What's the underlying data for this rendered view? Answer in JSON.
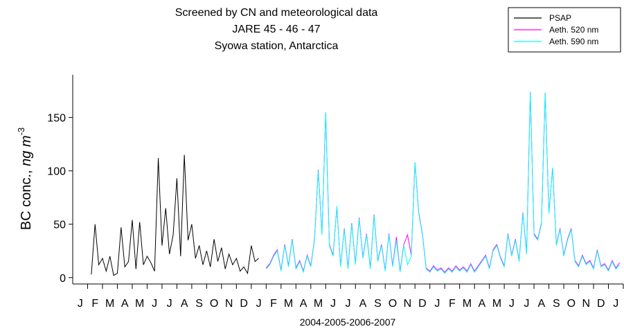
{
  "chart_data": {
    "type": "line",
    "title_lines": [
      "Screened by CN and meteorological data",
      "JARE 45 - 46 - 47",
      "Syowa station, Antarctica"
    ],
    "y_label": {
      "text": "BC conc., ",
      "italic": "ng m",
      "sup": "-3"
    },
    "x_label": "2004-2005-2006-2007",
    "xlim": [
      0,
      37
    ],
    "ylim": [
      -6,
      190
    ],
    "yticks": [
      0,
      50,
      100,
      150
    ],
    "xticks": [
      {
        "value": 0.5,
        "label": "J"
      },
      {
        "value": 1.5,
        "label": "F"
      },
      {
        "value": 2.5,
        "label": "M"
      },
      {
        "value": 3.5,
        "label": "A"
      },
      {
        "value": 4.5,
        "label": "M"
      },
      {
        "value": 5.5,
        "label": "J"
      },
      {
        "value": 6.5,
        "label": "J"
      },
      {
        "value": 7.5,
        "label": "A"
      },
      {
        "value": 8.5,
        "label": "S"
      },
      {
        "value": 9.5,
        "label": "O"
      },
      {
        "value": 10.5,
        "label": "N"
      },
      {
        "value": 11.5,
        "label": "D"
      },
      {
        "value": 12.5,
        "label": "J"
      },
      {
        "value": 13.5,
        "label": "F"
      },
      {
        "value": 14.5,
        "label": "M"
      },
      {
        "value": 15.5,
        "label": "A"
      },
      {
        "value": 16.5,
        "label": "M"
      },
      {
        "value": 17.5,
        "label": "J"
      },
      {
        "value": 18.5,
        "label": "J"
      },
      {
        "value": 19.5,
        "label": "A"
      },
      {
        "value": 20.5,
        "label": "S"
      },
      {
        "value": 21.5,
        "label": "O"
      },
      {
        "value": 22.5,
        "label": "N"
      },
      {
        "value": 23.5,
        "label": "D"
      },
      {
        "value": 24.5,
        "label": "J"
      },
      {
        "value": 25.5,
        "label": "F"
      },
      {
        "value": 26.5,
        "label": "M"
      },
      {
        "value": 27.5,
        "label": "A"
      },
      {
        "value": 28.5,
        "label": "M"
      },
      {
        "value": 29.5,
        "label": "J"
      },
      {
        "value": 30.5,
        "label": "J"
      },
      {
        "value": 31.5,
        "label": "A"
      },
      {
        "value": 32.5,
        "label": "S"
      },
      {
        "value": 33.5,
        "label": "O"
      },
      {
        "value": 34.5,
        "label": "N"
      },
      {
        "value": 35.5,
        "label": "D"
      },
      {
        "value": 36.5,
        "label": "J"
      }
    ],
    "legend": "upper right",
    "series": [
      {
        "name": "PSAP",
        "color": "#000000",
        "x": [
          1.25,
          1.5,
          1.75,
          2,
          2.25,
          2.5,
          2.75,
          3,
          3.25,
          3.5,
          3.75,
          4,
          4.25,
          4.5,
          4.75,
          5,
          5.25,
          5.5,
          5.75,
          6,
          6.25,
          6.5,
          6.75,
          7,
          7.25,
          7.5,
          7.75,
          8,
          8.25,
          8.5,
          8.75,
          9,
          9.25,
          9.5,
          9.75,
          10,
          10.25,
          10.5,
          10.75,
          11,
          11.25,
          11.5,
          11.75,
          12,
          12.25,
          12.5
        ],
        "values": [
          3,
          50,
          12,
          18,
          6,
          20,
          2,
          4,
          47,
          10,
          15,
          54,
          8,
          52,
          12,
          20,
          14,
          6,
          112,
          30,
          65,
          22,
          40,
          93,
          20,
          115,
          35,
          50,
          18,
          30,
          12,
          25,
          10,
          36,
          15,
          28,
          8,
          22,
          12,
          18,
          6,
          10,
          4,
          30,
          15,
          18
        ]
      },
      {
        "name": "Aeth. 520 nm",
        "color": "#ff00ff",
        "x": [
          13,
          13.25,
          13.5,
          13.75,
          14,
          14.25,
          14.5,
          14.75,
          15,
          15.25,
          15.5,
          15.75,
          16,
          16.25,
          16.5,
          16.75,
          17,
          17.25,
          17.5,
          17.75,
          18,
          18.25,
          18.5,
          18.75,
          19,
          19.25,
          19.5,
          19.75,
          20,
          20.25,
          20.5,
          20.75,
          21,
          21.25,
          21.5,
          21.75,
          22,
          22.25,
          22.5,
          22.75,
          23,
          23.25,
          23.5,
          23.75,
          24,
          24.25,
          24.5,
          24.75,
          25,
          25.25,
          25.5,
          25.75,
          26,
          26.25,
          26.5,
          26.75,
          27,
          27.25,
          27.5,
          27.75,
          28,
          28.25,
          28.5,
          28.75,
          29,
          29.25,
          29.5,
          29.75,
          30,
          30.25,
          30.5,
          30.75,
          31,
          31.25,
          31.5,
          31.75,
          32,
          32.25,
          32.5,
          32.75,
          33,
          33.25,
          33.5,
          33.75,
          34,
          34.25,
          34.5,
          34.75,
          35,
          35.25,
          35.5,
          35.75,
          36,
          36.25,
          36.5,
          36.75
        ],
        "values": [
          9,
          13,
          21,
          26,
          7,
          31,
          11,
          36,
          9,
          16,
          6,
          21,
          11,
          36,
          101,
          41,
          154,
          31,
          21,
          66,
          11,
          46,
          9,
          51,
          13,
          56,
          19,
          41,
          9,
          59,
          16,
          31,
          7,
          41,
          11,
          38,
          6,
          31,
          40,
          21,
          108,
          61,
          41,
          9,
          6,
          11,
          7,
          9,
          5,
          9,
          6,
          11,
          7,
          10,
          6,
          13,
          6,
          11,
          16,
          21,
          9,
          26,
          31,
          19,
          11,
          41,
          21,
          36,
          16,
          61,
          23,
          174,
          41,
          36,
          51,
          173,
          61,
          103,
          31,
          46,
          21,
          36,
          46,
          16,
          11,
          21,
          13,
          16,
          9,
          26,
          11,
          13,
          7,
          16,
          9,
          14
        ]
      },
      {
        "name": "Aeth. 590 nm",
        "color": "#00ffff",
        "x": [
          13,
          13.25,
          13.5,
          13.75,
          14,
          14.25,
          14.5,
          14.75,
          15,
          15.25,
          15.5,
          15.75,
          16,
          16.25,
          16.5,
          16.75,
          17,
          17.25,
          17.5,
          17.75,
          18,
          18.25,
          18.5,
          18.75,
          19,
          19.25,
          19.5,
          19.75,
          20,
          20.25,
          20.5,
          20.75,
          21,
          21.25,
          21.5,
          21.75,
          22,
          22.25,
          22.5,
          22.75,
          23,
          23.25,
          23.5,
          23.75,
          24,
          24.25,
          24.5,
          24.75,
          25,
          25.25,
          25.5,
          25.75,
          26,
          26.25,
          26.5,
          26.75,
          27,
          27.25,
          27.5,
          27.75,
          28,
          28.25,
          28.5,
          28.75,
          29,
          29.25,
          29.5,
          29.75,
          30,
          30.25,
          30.5,
          30.75,
          31,
          31.25,
          31.5,
          31.75,
          32,
          32.25,
          32.5,
          32.75,
          33,
          33.25,
          33.5,
          33.75,
          34,
          34.25,
          34.5,
          34.75,
          35,
          35.25,
          35.5,
          35.75,
          36,
          36.25,
          36.5,
          36.75
        ],
        "values": [
          8,
          12,
          20,
          25,
          6,
          30,
          10,
          35,
          8,
          15,
          5,
          20,
          10,
          35,
          100,
          40,
          155,
          30,
          20,
          67,
          10,
          45,
          8,
          50,
          12,
          55,
          18,
          40,
          8,
          58,
          15,
          30,
          6,
          40,
          10,
          35,
          5,
          30,
          12,
          20,
          108,
          60,
          40,
          8,
          5,
          10,
          6,
          8,
          4,
          8,
          5,
          10,
          6,
          9,
          5,
          12,
          5,
          10,
          15,
          20,
          8,
          25,
          30,
          18,
          10,
          40,
          20,
          35,
          15,
          60,
          22,
          174,
          40,
          35,
          50,
          173,
          60,
          103,
          30,
          45,
          20,
          35,
          45,
          15,
          10,
          20,
          12,
          15,
          8,
          25,
          10,
          12,
          6,
          15,
          8,
          12
        ]
      }
    ]
  }
}
